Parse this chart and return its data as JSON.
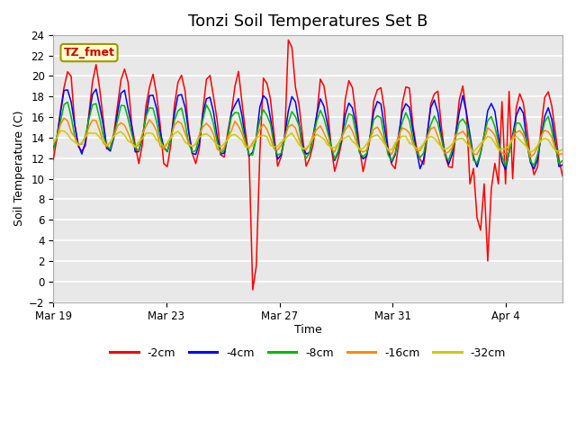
{
  "title": "Tonzi Soil Temperatures Set B",
  "xlabel": "Time",
  "ylabel": "Soil Temperature (C)",
  "ylim": [
    -2,
    24
  ],
  "yticks": [
    -2,
    0,
    2,
    4,
    6,
    8,
    10,
    12,
    14,
    16,
    18,
    20,
    22,
    24
  ],
  "plot_bg_color": "#e8e8e8",
  "grid_color": "#ffffff",
  "legend_label": "TZ_fmet",
  "legend_bg": "#ffffcc",
  "legend_border": "#999900",
  "series_colors": [
    "#ff0000",
    "#0000ff",
    "#00bb00",
    "#ff8800",
    "#cccc00"
  ],
  "series_labels": [
    "-2cm",
    "-4cm",
    "-8cm",
    "-16cm",
    "-32cm"
  ],
  "xtick_labels": [
    "Mar 19",
    "Mar 23",
    "Mar 27",
    "Mar 31",
    "Apr 4"
  ],
  "xtick_positions": [
    0,
    4,
    8,
    12,
    16
  ],
  "title_fontsize": 13,
  "axis_label_fontsize": 9,
  "tick_fontsize": 8.5
}
